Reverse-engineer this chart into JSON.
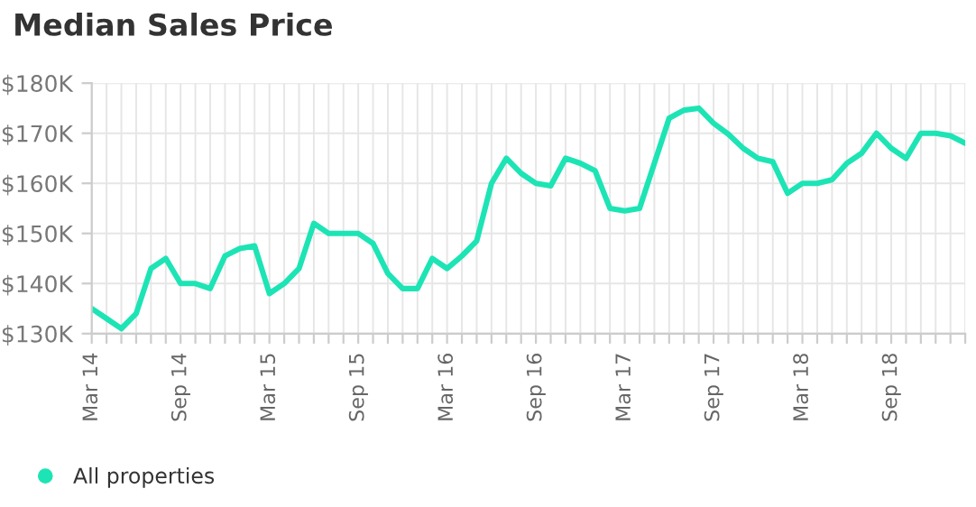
{
  "chart_data": {
    "type": "line",
    "title": "Median Sales Price",
    "categories": [
      "Mar 14",
      null,
      null,
      null,
      null,
      null,
      "Sep 14",
      null,
      null,
      null,
      null,
      null,
      "Mar 15",
      null,
      null,
      null,
      null,
      null,
      "Sep 15",
      null,
      null,
      null,
      null,
      null,
      "Mar 16",
      null,
      null,
      null,
      null,
      null,
      "Sep 16",
      null,
      null,
      null,
      null,
      null,
      "Mar 17",
      null,
      null,
      null,
      null,
      null,
      "Sep 17",
      null,
      null,
      null,
      null,
      null,
      "Mar 18",
      null,
      null,
      null,
      null,
      null,
      "Sep 18",
      null,
      null,
      null,
      null,
      null
    ],
    "series": [
      {
        "name": "All properties",
        "color": "#1de4b5",
        "values": [
          135,
          133,
          131,
          134,
          143,
          145,
          140,
          140,
          139,
          145.5,
          147,
          147.5,
          138,
          140,
          143,
          152,
          150,
          150,
          150,
          148,
          142,
          139,
          139,
          145,
          143,
          145.5,
          148.5,
          160,
          165,
          162,
          160,
          159.5,
          165,
          164,
          162.5,
          155,
          154.5,
          155,
          164,
          173,
          174.6,
          175,
          172,
          169.8,
          167,
          165,
          164.3,
          158,
          160,
          160,
          160.7,
          164,
          166,
          170,
          167,
          165,
          170,
          170,
          169.5,
          168
        ]
      }
    ],
    "ylim": [
      130,
      180
    ],
    "yticks": [
      {
        "value": 130,
        "label": "$130K"
      },
      {
        "value": 140,
        "label": "$140K"
      },
      {
        "value": 150,
        "label": "$150K"
      },
      {
        "value": 160,
        "label": "$160K"
      },
      {
        "value": 170,
        "label": "$170K"
      },
      {
        "value": 180,
        "label": "$180K"
      }
    ],
    "grid": true,
    "legend": "bottom left"
  }
}
